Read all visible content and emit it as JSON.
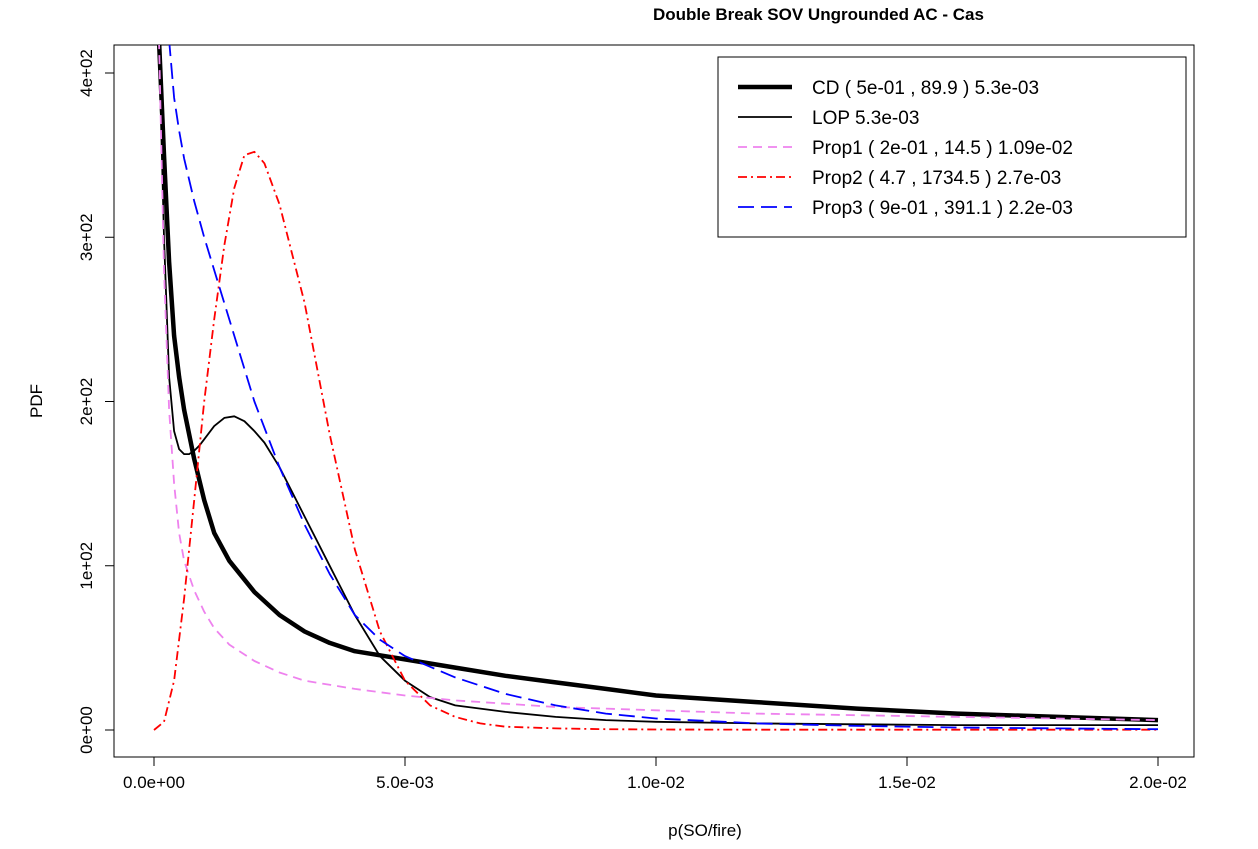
{
  "chart_data": {
    "type": "line",
    "title": "Double Break SOV Ungrounded AC - Cas",
    "xlabel": "p(SO/fire)",
    "ylabel": "PDF",
    "xlim": [
      0,
      0.02
    ],
    "ylim": [
      0,
      400
    ],
    "x_ticks": [
      0,
      0.005,
      0.01,
      0.015,
      0.02
    ],
    "x_tick_labels": [
      "0.0e+00",
      "5.0e-03",
      "1.0e-02",
      "1.5e-02",
      "2.0e-02"
    ],
    "y_ticks": [
      0,
      100,
      200,
      300,
      400
    ],
    "y_tick_labels": [
      "0e+00",
      "1e+02",
      "2e+02",
      "3e+02",
      "4e+02"
    ],
    "grid": false,
    "legend_position": "top-right",
    "series": [
      {
        "name": "CD ( 5e-01 , 89.9 ) 5.3e-03",
        "color": "#000000",
        "line_style": "solid",
        "line_weight": "heavy",
        "x": [
          0.0001,
          0.0002,
          0.0003,
          0.0004,
          0.0005,
          0.0006,
          0.0008,
          0.001,
          0.0012,
          0.0015,
          0.002,
          0.0025,
          0.003,
          0.0035,
          0.004,
          0.005,
          0.006,
          0.007,
          0.008,
          0.009,
          0.01,
          0.012,
          0.014,
          0.016,
          0.018,
          0.02
        ],
        "y": [
          420,
          350,
          285,
          240,
          215,
          195,
          165,
          140,
          120,
          103,
          84,
          70,
          60,
          53,
          48,
          43,
          38,
          33,
          29,
          25,
          21,
          17,
          13,
          10,
          8,
          6
        ]
      },
      {
        "name": "LOP 5.3e-03",
        "color": "#000000",
        "line_style": "solid",
        "line_weight": "normal",
        "x": [
          0.0001,
          0.0002,
          0.0003,
          0.0004,
          0.0005,
          0.0006,
          0.0007,
          0.0008,
          0.0009,
          0.001,
          0.0012,
          0.0014,
          0.0016,
          0.0018,
          0.002,
          0.0022,
          0.0025,
          0.003,
          0.0035,
          0.004,
          0.0045,
          0.005,
          0.0055,
          0.006,
          0.007,
          0.008,
          0.009,
          0.01,
          0.012,
          0.014,
          0.016,
          0.018,
          0.02
        ],
        "y": [
          420,
          300,
          215,
          182,
          171,
          168,
          168,
          170,
          173,
          177,
          185,
          190,
          191,
          188,
          182,
          175,
          160,
          130,
          100,
          70,
          45,
          30,
          20,
          15,
          11,
          8,
          6,
          5,
          4,
          3.5,
          3,
          3,
          3
        ]
      },
      {
        "name": "Prop1 ( 2e-01 , 14.5 ) 1.09e-02",
        "color": "#ee82ee",
        "line_style": "dashed",
        "line_weight": "normal",
        "x": [
          0.0001,
          0.0002,
          0.0003,
          0.0004,
          0.0005,
          0.0006,
          0.0008,
          0.001,
          0.0012,
          0.0015,
          0.002,
          0.0025,
          0.003,
          0.004,
          0.005,
          0.006,
          0.008,
          0.01,
          0.012,
          0.014,
          0.016,
          0.018,
          0.02
        ],
        "y": [
          420,
          280,
          195,
          150,
          120,
          103,
          85,
          72,
          62,
          52,
          42,
          35,
          30,
          25,
          21,
          18,
          14,
          12,
          10,
          9,
          8,
          7,
          6
        ]
      },
      {
        "name": "Prop2 ( 4.7 , 1734.5 ) 2.7e-03",
        "color": "#ff0000",
        "line_style": "dash-dot",
        "line_weight": "normal",
        "x": [
          0,
          0.0002,
          0.0004,
          0.0006,
          0.0008,
          0.001,
          0.0012,
          0.0014,
          0.0016,
          0.0018,
          0.002,
          0.0022,
          0.0025,
          0.003,
          0.0035,
          0.004,
          0.0045,
          0.005,
          0.0055,
          0.006,
          0.0065,
          0.007,
          0.008,
          0.009,
          0.01,
          0.012,
          0.014,
          0.016,
          0.018,
          0.02
        ],
        "y": [
          0,
          5,
          30,
          80,
          140,
          200,
          250,
          295,
          330,
          350,
          352,
          345,
          320,
          260,
          180,
          110,
          60,
          30,
          15,
          8,
          4,
          2,
          1,
          0.5,
          0.3,
          0.2,
          0.2,
          0.2,
          0.2,
          0.2
        ]
      },
      {
        "name": "Prop3 ( 9e-01 , 391.1 ) 2.2e-03",
        "color": "#0000ff",
        "line_style": "long-dash",
        "line_weight": "normal",
        "x": [
          0.0003,
          0.0004,
          0.0005,
          0.0006,
          0.0008,
          0.001,
          0.0012,
          0.0015,
          0.002,
          0.0025,
          0.003,
          0.0035,
          0.004,
          0.0045,
          0.005,
          0.006,
          0.007,
          0.008,
          0.009,
          0.01,
          0.012,
          0.014,
          0.016,
          0.018,
          0.02
        ],
        "y": [
          420,
          385,
          365,
          348,
          322,
          300,
          280,
          250,
          200,
          160,
          125,
          95,
          70,
          55,
          45,
          32,
          22,
          15,
          10,
          7,
          4,
          2.5,
          1.5,
          1,
          0.5
        ]
      }
    ]
  }
}
